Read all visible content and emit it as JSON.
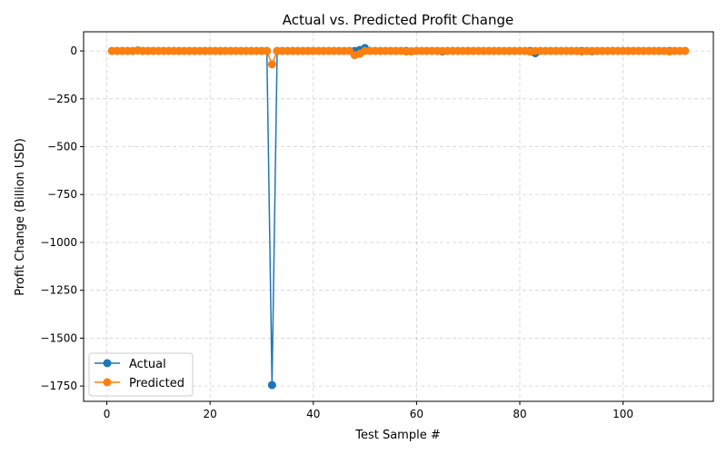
{
  "chart_data": {
    "type": "line",
    "title": "Actual vs. Predicted Profit Change",
    "xlabel": "Test Sample #",
    "ylabel": "Profit Change (Billion USD)",
    "xlim": [
      -4.5,
      117.5
    ],
    "ylim": [
      -1830,
      100
    ],
    "xticks": [
      0,
      20,
      40,
      60,
      80,
      100
    ],
    "yticks": [
      0,
      -250,
      -500,
      -750,
      -1000,
      -1250,
      -1500,
      -1750
    ],
    "grid": true,
    "legend_position": "lower-left",
    "series": [
      {
        "name": "Actual",
        "color": "#1f77b4",
        "values": [
          0,
          0,
          0,
          0,
          0,
          3,
          0,
          0,
          0,
          0,
          0,
          0,
          0,
          0,
          0,
          0,
          0,
          0,
          0,
          0,
          0,
          0,
          0,
          0,
          0,
          0,
          0,
          0,
          0,
          0,
          0,
          -1745,
          0,
          0,
          0,
          0,
          0,
          0,
          0,
          0,
          0,
          0,
          0,
          0,
          0,
          0,
          0,
          0,
          5,
          15,
          0,
          0,
          0,
          0,
          0,
          0,
          0,
          0,
          -2,
          0,
          0,
          0,
          0,
          0,
          -3,
          0,
          0,
          0,
          0,
          0,
          0,
          0,
          0,
          0,
          0,
          0,
          0,
          0,
          0,
          0,
          0,
          0,
          -12,
          0,
          0,
          0,
          0,
          0,
          0,
          0,
          0,
          0,
          0,
          -2,
          0,
          0,
          0,
          0,
          0,
          0,
          0,
          0,
          0,
          0,
          0,
          0,
          0,
          0,
          0,
          0,
          0,
          0
        ]
      },
      {
        "name": "Predicted",
        "color": "#ff7f0e",
        "values": [
          0,
          0,
          0,
          0,
          0,
          2,
          0,
          0,
          0,
          0,
          0,
          0,
          0,
          0,
          0,
          0,
          0,
          0,
          0,
          0,
          0,
          0,
          0,
          0,
          0,
          0,
          0,
          0,
          0,
          0,
          0,
          -70,
          0,
          0,
          0,
          0,
          0,
          0,
          0,
          0,
          0,
          0,
          0,
          0,
          0,
          0,
          0,
          -22,
          -15,
          0,
          0,
          0,
          0,
          0,
          0,
          0,
          0,
          -3,
          -3,
          0,
          0,
          0,
          0,
          0,
          0,
          0,
          0,
          0,
          0,
          0,
          0,
          0,
          0,
          0,
          0,
          0,
          0,
          0,
          0,
          0,
          0,
          -4,
          0,
          0,
          0,
          0,
          0,
          0,
          0,
          0,
          0,
          -3,
          0,
          0,
          0,
          0,
          0,
          0,
          0,
          0,
          0,
          0,
          0,
          0,
          0,
          0,
          0,
          0,
          -3,
          0,
          0,
          0
        ]
      }
    ]
  }
}
